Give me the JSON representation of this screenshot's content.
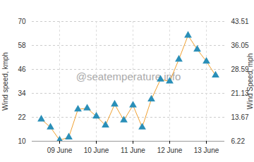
{
  "chart_data": {
    "type": "line",
    "annotation": "@seatemperature.info",
    "y_label": "Wind speed, kmph",
    "y2_label": "Wind Speed, mph",
    "categories": [
      null,
      null,
      "09 June",
      null,
      null,
      null,
      "10 June",
      null,
      null,
      null,
      "11 June",
      null,
      null,
      null,
      "12 June",
      null,
      null,
      null,
      "13 June",
      null
    ],
    "series": [
      {
        "name": "Wind speed",
        "color": "#f0a030",
        "marker": "triangle",
        "marker_color": "#2a8fb8",
        "values": [
          21,
          17,
          10.5,
          12,
          26,
          26.5,
          22.5,
          18,
          28.5,
          20.5,
          28,
          17,
          31,
          41,
          40,
          51,
          63,
          56,
          50,
          43
        ]
      }
    ],
    "ylim": [
      10,
      70
    ],
    "yticks": [
      10,
      22,
      34,
      46,
      58,
      70
    ],
    "y2lim": [
      6.22,
      43.51
    ],
    "y2ticks": [
      6.22,
      13.67,
      21.13,
      28.59,
      36.05,
      43.51
    ],
    "grid": true
  }
}
